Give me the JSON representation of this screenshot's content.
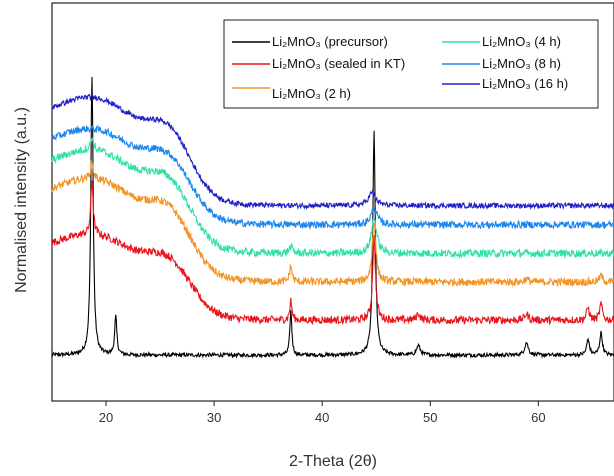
{
  "chart_data": {
    "type": "line",
    "title": "",
    "xlabel": "2-Theta (2θ)",
    "ylabel": "Normalised intensity (a.u.)",
    "xlim": [
      15,
      67
    ],
    "xticks": [
      20,
      30,
      40,
      50,
      60
    ],
    "grid": false,
    "y_ticks_shown": false,
    "legend_placement": "top-right",
    "series": [
      {
        "name": "Li₂MnO₃ (precursor)",
        "color": "#000000",
        "baseline": 0.05,
        "hump": 0.0,
        "noise": 0.006,
        "peaks": [
          [
            18.7,
            0.88,
            0.13
          ],
          [
            20.9,
            0.12,
            0.12
          ],
          [
            37.1,
            0.14,
            0.11
          ],
          [
            44.8,
            0.7,
            0.14
          ],
          [
            48.9,
            0.03,
            0.2
          ],
          [
            58.9,
            0.04,
            0.2
          ],
          [
            64.6,
            0.05,
            0.15
          ],
          [
            65.8,
            0.07,
            0.15
          ]
        ]
      },
      {
        "name": "Li₂MnO₃ (sealed in KT)",
        "color": "#e8161c",
        "baseline": 0.16,
        "hump": 0.34,
        "noise": 0.012,
        "peaks": [
          [
            18.7,
            0.17,
            0.13
          ],
          [
            37.1,
            0.06,
            0.12
          ],
          [
            44.8,
            0.26,
            0.16
          ],
          [
            48.9,
            0.02,
            0.2
          ],
          [
            58.9,
            0.02,
            0.2
          ],
          [
            64.6,
            0.04,
            0.15
          ],
          [
            65.8,
            0.05,
            0.15
          ]
        ]
      },
      {
        "name": "Li₂MnO₃ (2 h)",
        "color": "#f39324",
        "baseline": 0.28,
        "hump": 0.41,
        "noise": 0.012,
        "peaks": [
          [
            18.7,
            0.05,
            0.15
          ],
          [
            37.1,
            0.05,
            0.14
          ],
          [
            44.8,
            0.19,
            0.2
          ],
          [
            58.9,
            0.01,
            0.2
          ],
          [
            65.8,
            0.02,
            0.18
          ]
        ]
      },
      {
        "name": "Li₂MnO₃ (4 h)",
        "color": "#33e0a4",
        "baseline": 0.37,
        "hump": 0.41,
        "noise": 0.012,
        "peaks": [
          [
            18.7,
            0.04,
            0.16
          ],
          [
            37.1,
            0.02,
            0.2
          ],
          [
            44.8,
            0.11,
            0.3
          ]
        ]
      },
      {
        "name": "Li₂MnO₃ (8 h)",
        "color": "#1c86ee",
        "baseline": 0.46,
        "hump": 0.38,
        "noise": 0.011,
        "peaks": [
          [
            44.8,
            0.05,
            0.35
          ]
        ]
      },
      {
        "name": "Li₂MnO₃ (16 h)",
        "color": "#2020c8",
        "baseline": 0.52,
        "hump": 0.43,
        "noise": 0.008,
        "peaks": [
          [
            44.6,
            0.04,
            0.4
          ]
        ]
      }
    ]
  }
}
